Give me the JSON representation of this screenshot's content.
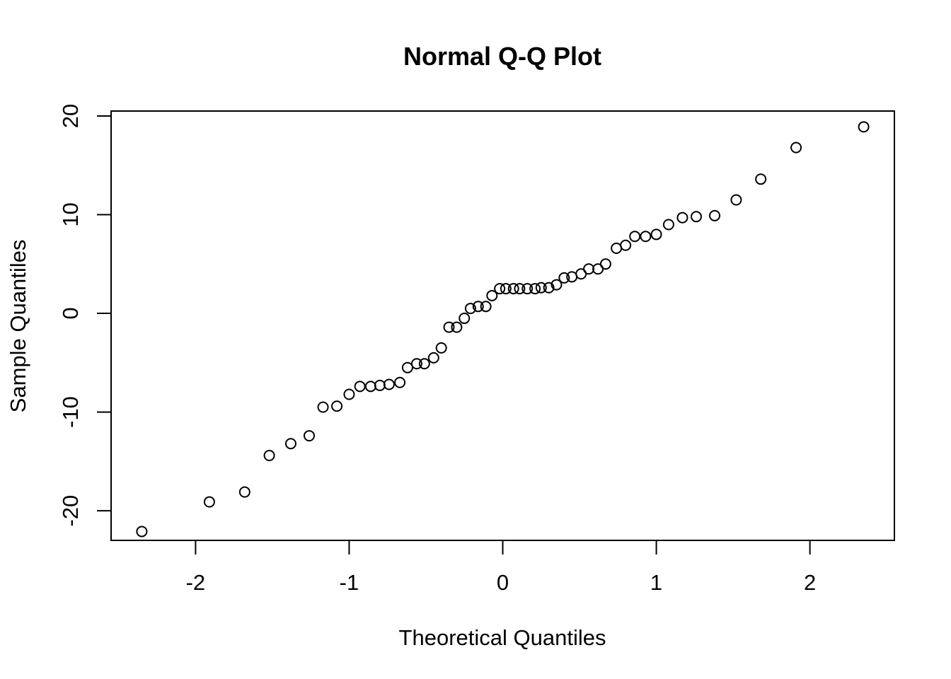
{
  "chart_data": {
    "type": "scatter",
    "title": "Normal Q-Q Plot",
    "xlabel": "Theoretical Quantiles",
    "ylabel": "Sample Quantiles",
    "xlim": [
      -2.55,
      2.55
    ],
    "ylim": [
      -23.0,
      20.5
    ],
    "xticks": [
      -2,
      -1,
      0,
      1,
      2
    ],
    "xtick_labels": [
      "-2",
      "-1",
      "0",
      "1",
      "2"
    ],
    "yticks": [
      -20,
      -10,
      0,
      10,
      20
    ],
    "ytick_labels": [
      "-20",
      "-10",
      "0",
      "10",
      "20"
    ],
    "grid": false,
    "marker": "open-circle",
    "points": [
      {
        "x": -2.35,
        "y": -22.1
      },
      {
        "x": -1.91,
        "y": -19.1
      },
      {
        "x": -1.68,
        "y": -18.1
      },
      {
        "x": -1.52,
        "y": -14.4
      },
      {
        "x": -1.38,
        "y": -13.2
      },
      {
        "x": -1.26,
        "y": -12.4
      },
      {
        "x": -1.17,
        "y": -9.5
      },
      {
        "x": -1.08,
        "y": -9.4
      },
      {
        "x": -1.0,
        "y": -8.2
      },
      {
        "x": -0.93,
        "y": -7.4
      },
      {
        "x": -0.86,
        "y": -7.4
      },
      {
        "x": -0.8,
        "y": -7.3
      },
      {
        "x": -0.74,
        "y": -7.2
      },
      {
        "x": -0.67,
        "y": -7.0
      },
      {
        "x": -0.62,
        "y": -5.5
      },
      {
        "x": -0.56,
        "y": -5.1
      },
      {
        "x": -0.51,
        "y": -5.1
      },
      {
        "x": -0.45,
        "y": -4.5
      },
      {
        "x": -0.4,
        "y": -3.5
      },
      {
        "x": -0.35,
        "y": -1.4
      },
      {
        "x": -0.3,
        "y": -1.4
      },
      {
        "x": -0.25,
        "y": -0.5
      },
      {
        "x": -0.21,
        "y": 0.5
      },
      {
        "x": -0.16,
        "y": 0.7
      },
      {
        "x": -0.11,
        "y": 0.7
      },
      {
        "x": -0.07,
        "y": 1.8
      },
      {
        "x": -0.02,
        "y": 2.5
      },
      {
        "x": 0.02,
        "y": 2.5
      },
      {
        "x": 0.07,
        "y": 2.5
      },
      {
        "x": 0.11,
        "y": 2.5
      },
      {
        "x": 0.16,
        "y": 2.5
      },
      {
        "x": 0.21,
        "y": 2.5
      },
      {
        "x": 0.25,
        "y": 2.6
      },
      {
        "x": 0.3,
        "y": 2.6
      },
      {
        "x": 0.35,
        "y": 2.9
      },
      {
        "x": 0.4,
        "y": 3.6
      },
      {
        "x": 0.45,
        "y": 3.7
      },
      {
        "x": 0.51,
        "y": 4.0
      },
      {
        "x": 0.56,
        "y": 4.5
      },
      {
        "x": 0.62,
        "y": 4.5
      },
      {
        "x": 0.67,
        "y": 5.0
      },
      {
        "x": 0.74,
        "y": 6.6
      },
      {
        "x": 0.8,
        "y": 6.9
      },
      {
        "x": 0.86,
        "y": 7.8
      },
      {
        "x": 0.93,
        "y": 7.8
      },
      {
        "x": 1.0,
        "y": 8.0
      },
      {
        "x": 1.08,
        "y": 9.0
      },
      {
        "x": 1.17,
        "y": 9.7
      },
      {
        "x": 1.26,
        "y": 9.8
      },
      {
        "x": 1.38,
        "y": 9.9
      },
      {
        "x": 1.52,
        "y": 11.5
      },
      {
        "x": 1.68,
        "y": 13.6
      },
      {
        "x": 1.91,
        "y": 16.8
      },
      {
        "x": 2.35,
        "y": 18.9
      }
    ]
  }
}
